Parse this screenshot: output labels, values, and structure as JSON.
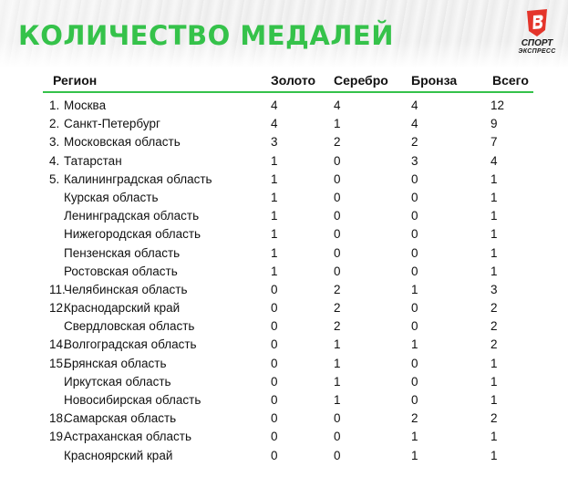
{
  "title": "КОЛИЧЕСТВО МЕДАЛЕЙ",
  "logo": {
    "line1": "СПОРТ",
    "line2": "ЭКСПРЕСС",
    "color": "#e4352b"
  },
  "accent_color": "#35c24a",
  "columns": {
    "region": "Регион",
    "gold": "Золото",
    "silver": "Серебро",
    "bronze": "Бронза",
    "total": "Всего"
  },
  "rows": [
    {
      "rank": "1.",
      "region": "Москва",
      "gold": "4",
      "silver": "4",
      "bronze": "4",
      "total": "12"
    },
    {
      "rank": "2.",
      "region": "Санкт-Петербург",
      "gold": "4",
      "silver": "1",
      "bronze": "4",
      "total": "9"
    },
    {
      "rank": "3.",
      "region": "Московская область",
      "gold": "3",
      "silver": "2",
      "bronze": "2",
      "total": "7"
    },
    {
      "rank": "4.",
      "region": "Татарстан",
      "gold": "1",
      "silver": "0",
      "bronze": "3",
      "total": "4"
    },
    {
      "rank": "5.",
      "region": "Калининградская область",
      "gold": "1",
      "silver": "0",
      "bronze": "0",
      "total": "1"
    },
    {
      "rank": "",
      "region": "Курская область",
      "gold": "1",
      "silver": "0",
      "bronze": "0",
      "total": "1"
    },
    {
      "rank": "",
      "region": "Ленинградская область",
      "gold": "1",
      "silver": "0",
      "bronze": "0",
      "total": "1"
    },
    {
      "rank": "",
      "region": "Нижегородская область",
      "gold": "1",
      "silver": "0",
      "bronze": "0",
      "total": "1"
    },
    {
      "rank": "",
      "region": "Пензенская область",
      "gold": "1",
      "silver": "0",
      "bronze": "0",
      "total": "1"
    },
    {
      "rank": "",
      "region": "Ростовская область",
      "gold": "1",
      "silver": "0",
      "bronze": "0",
      "total": "1"
    },
    {
      "rank": "11.",
      "region": "Челябинская область",
      "gold": "0",
      "silver": "2",
      "bronze": "1",
      "total": "3"
    },
    {
      "rank": "12.",
      "region": "Краснодарский край",
      "gold": "0",
      "silver": "2",
      "bronze": "0",
      "total": "2"
    },
    {
      "rank": "",
      "region": "Свердловская область",
      "gold": "0",
      "silver": "2",
      "bronze": "0",
      "total": "2"
    },
    {
      "rank": "14.",
      "region": "Волгоградская область",
      "gold": "0",
      "silver": "1",
      "bronze": "1",
      "total": "2"
    },
    {
      "rank": "15.",
      "region": "Брянская область",
      "gold": "0",
      "silver": "1",
      "bronze": "0",
      "total": "1"
    },
    {
      "rank": "",
      "region": "Иркутская область",
      "gold": "0",
      "silver": "1",
      "bronze": "0",
      "total": "1"
    },
    {
      "rank": "",
      "region": "Новосибирская область",
      "gold": "0",
      "silver": "1",
      "bronze": "0",
      "total": "1"
    },
    {
      "rank": "18.",
      "region": "Самарская область",
      "gold": "0",
      "silver": "0",
      "bronze": "2",
      "total": "2"
    },
    {
      "rank": "19.",
      "region": "Астраханская область",
      "gold": "0",
      "silver": "0",
      "bronze": "1",
      "total": "1"
    },
    {
      "rank": "",
      "region": "Красноярский край",
      "gold": "0",
      "silver": "0",
      "bronze": "1",
      "total": "1"
    }
  ]
}
